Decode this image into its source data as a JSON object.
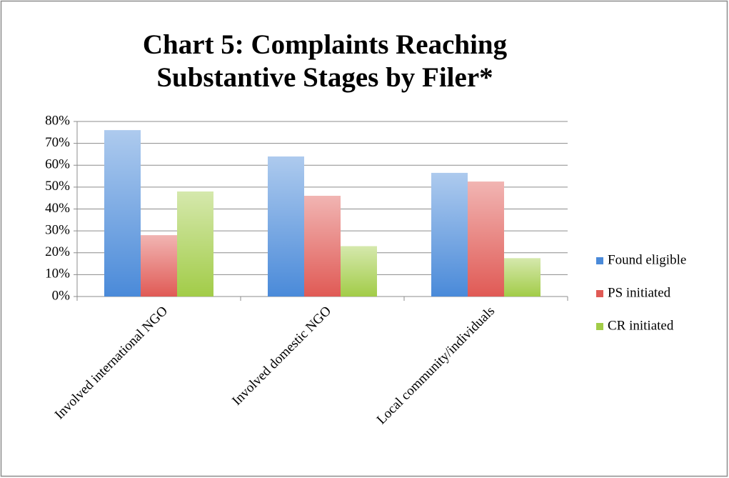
{
  "chart_data": {
    "type": "bar",
    "title": "Chart 5: Complaints Reaching Substantive Stages by Filer*",
    "categories": [
      "Involved international NGO",
      "Involved domestic NGO",
      "Local community/individuals"
    ],
    "series": [
      {
        "name": "Found eligible",
        "color": "#4a8ad9",
        "values": [
          76,
          64,
          56.5
        ]
      },
      {
        "name": "PS initiated",
        "color": "#e05a55",
        "values": [
          28,
          46,
          52.5
        ]
      },
      {
        "name": "CR initiated",
        "color": "#a2cc48",
        "values": [
          48,
          23,
          17.5
        ]
      }
    ],
    "ylim": [
      0,
      80
    ],
    "yticks": [
      {
        "value": 0,
        "label": "0%"
      },
      {
        "value": 10,
        "label": "10%"
      },
      {
        "value": 20,
        "label": "20%"
      },
      {
        "value": 30,
        "label": "30%"
      },
      {
        "value": 40,
        "label": "40%"
      },
      {
        "value": 50,
        "label": "50%"
      },
      {
        "value": 60,
        "label": "60%"
      },
      {
        "value": 70,
        "label": "70%"
      },
      {
        "value": 80,
        "label": "80%"
      }
    ],
    "grid": true,
    "legend": "right"
  }
}
